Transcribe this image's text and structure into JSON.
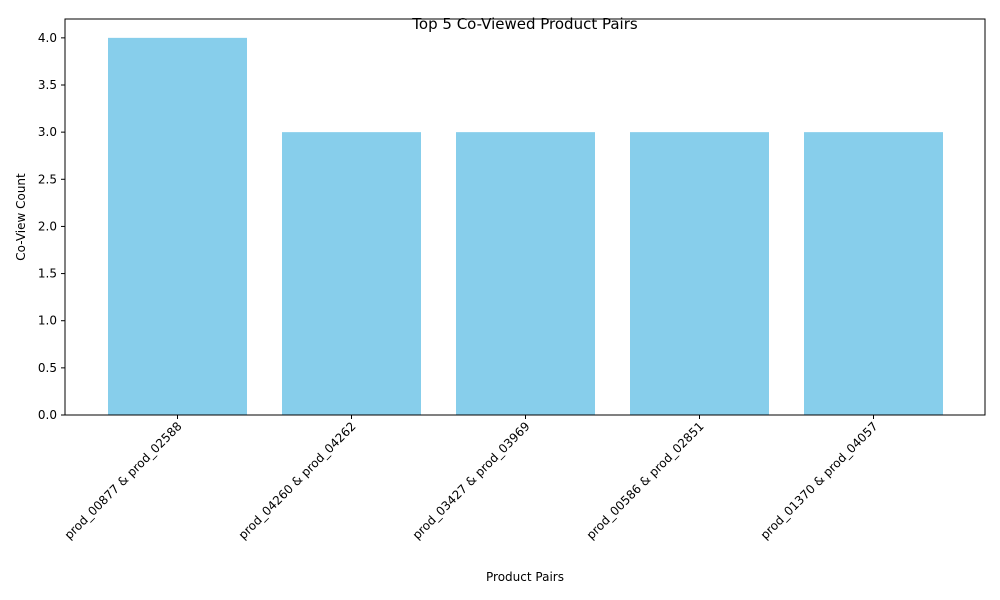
{
  "chart_data": {
    "type": "bar",
    "title": "Top 5 Co-Viewed Product Pairs",
    "xlabel": "Product Pairs",
    "ylabel": "Co-View Count",
    "categories": [
      "prod_00877 & prod_02588",
      "prod_04260 & prod_04262",
      "prod_03427 & prod_03969",
      "prod_00586 & prod_02851",
      "prod_01370 & prod_04057"
    ],
    "values": [
      4,
      3,
      3,
      3,
      3
    ],
    "ylim": [
      0,
      4.2
    ],
    "yticks": [
      "0.0",
      "0.5",
      "1.0",
      "1.5",
      "2.0",
      "2.5",
      "3.0",
      "3.5",
      "4.0"
    ],
    "bar_color": "#87ceeb",
    "grid": false,
    "legend": false
  }
}
